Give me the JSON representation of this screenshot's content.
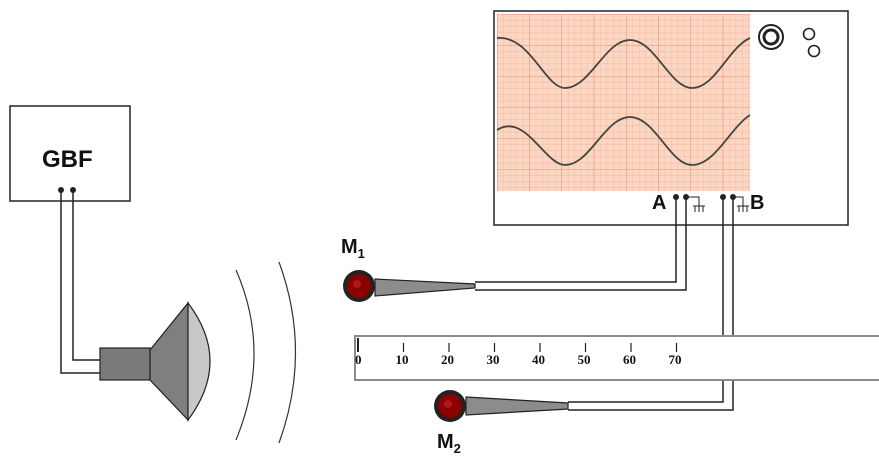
{
  "gbf": {
    "label": "GBF"
  },
  "oscilloscope": {
    "channel_a": "A",
    "channel_b": "B",
    "screen_color": "#fbd6c3",
    "grid_color": "#ef9a7e",
    "trace_color": "#444444"
  },
  "microphones": [
    {
      "letter": "M",
      "index": "1"
    },
    {
      "letter": "M",
      "index": "2"
    }
  ],
  "ruler": {
    "ticks": [
      "0",
      "10",
      "20",
      "30",
      "40",
      "50",
      "60",
      "70"
    ]
  },
  "colors": {
    "mic_body": "#8b0000",
    "mic_handle": "#8c8c8c",
    "speaker": "#7a7a7a",
    "speaker_light": "#c8c8c8"
  }
}
